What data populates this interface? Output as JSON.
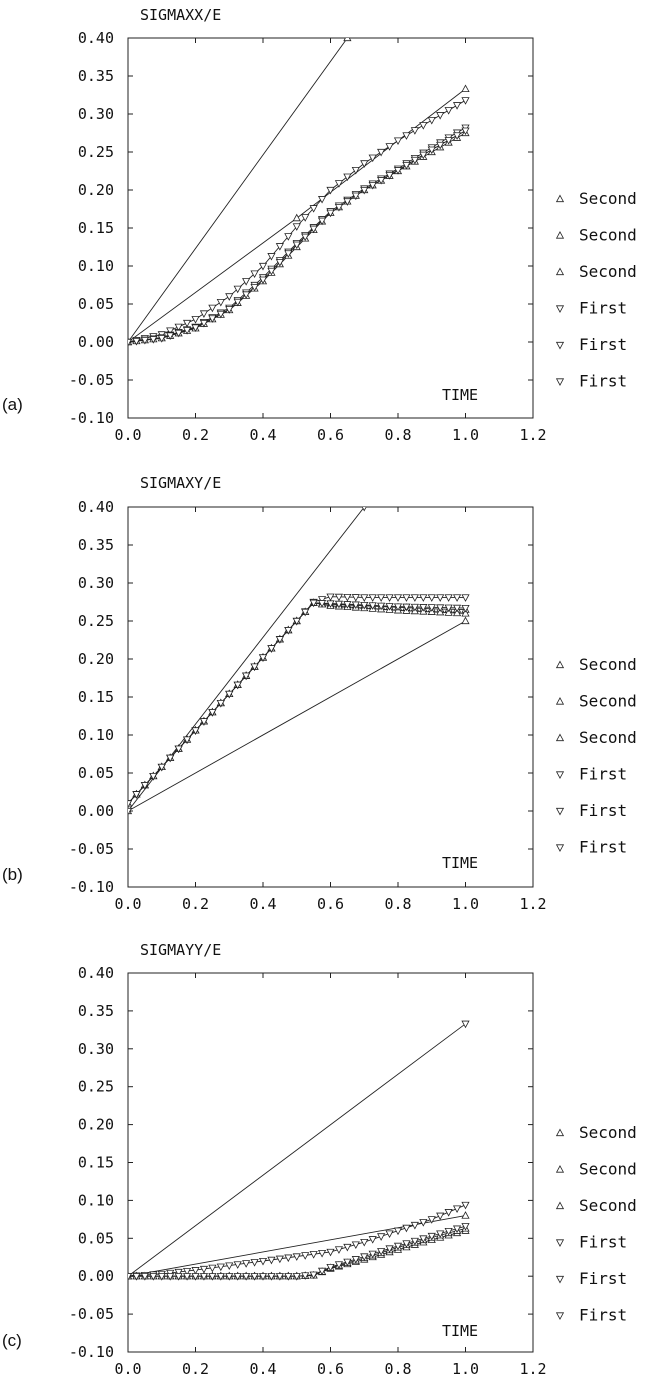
{
  "chart_data": [
    {
      "type": "line",
      "panel_label": "(a)",
      "title": "SIGMAXX/E",
      "xlabel": "TIME",
      "ylabel": "",
      "xlim": [
        0.0,
        1.2
      ],
      "ylim": [
        -0.1,
        0.4
      ],
      "xticks": [
        "0.0",
        "0.2",
        "0.4",
        "0.6",
        "0.8",
        "1.0",
        "1.2"
      ],
      "yticks": [
        "0.40",
        "0.35",
        "0.30",
        "0.25",
        "0.20",
        "0.15",
        "0.10",
        "0.05",
        "0.00",
        "-0.05",
        "-0.10"
      ],
      "grid": false,
      "legend_position": "right",
      "series": [
        {
          "name": "Second",
          "marker": "triangle-up",
          "x": [
            0.0,
            0.65,
            1.0
          ],
          "y": [
            0.0,
            0.4,
            0.61
          ]
        },
        {
          "name": "Second",
          "marker": "triangle-up",
          "x": [
            0.0,
            0.5,
            1.0
          ],
          "y": [
            0.0,
            0.163,
            0.333
          ]
        },
        {
          "name": "Second",
          "marker": "triangle-up",
          "x": [
            0.0,
            0.1,
            0.2,
            0.3,
            0.4,
            0.5,
            0.6,
            0.7,
            0.8,
            0.9,
            1.0
          ],
          "y": [
            0.0,
            0.005,
            0.018,
            0.042,
            0.08,
            0.125,
            0.17,
            0.2,
            0.225,
            0.25,
            0.275
          ]
        },
        {
          "name": "First",
          "marker": "triangle-down",
          "x": [
            0.0,
            0.1,
            0.2,
            0.3,
            0.4,
            0.5,
            0.6,
            0.7,
            0.8,
            0.9,
            1.0
          ],
          "y": [
            0.0,
            0.01,
            0.03,
            0.06,
            0.1,
            0.152,
            0.2,
            0.235,
            0.265,
            0.292,
            0.318
          ]
        },
        {
          "name": "First",
          "marker": "triangle-down",
          "x": [
            0.0,
            0.1,
            0.2,
            0.3,
            0.4,
            0.5,
            0.6,
            0.7,
            0.8,
            0.9,
            1.0
          ],
          "y": [
            0.0,
            0.006,
            0.02,
            0.045,
            0.085,
            0.13,
            0.172,
            0.202,
            0.228,
            0.256,
            0.282
          ]
        },
        {
          "name": "First",
          "marker": "triangle-down",
          "x": [
            0.0,
            0.1,
            0.2,
            0.3,
            0.4,
            0.5,
            0.6,
            0.7,
            0.8,
            0.9,
            1.0
          ],
          "y": [
            0.0,
            0.005,
            0.019,
            0.043,
            0.082,
            0.128,
            0.17,
            0.2,
            0.226,
            0.253,
            0.278
          ]
        }
      ]
    },
    {
      "type": "line",
      "panel_label": "(b)",
      "title": "SIGMAXY/E",
      "xlabel": "TIME",
      "ylabel": "",
      "xlim": [
        0.0,
        1.2
      ],
      "ylim": [
        -0.1,
        0.4
      ],
      "xticks": [
        "0.0",
        "0.2",
        "0.4",
        "0.6",
        "0.8",
        "1.0",
        "1.2"
      ],
      "yticks": [
        "0.40",
        "0.35",
        "0.30",
        "0.25",
        "0.20",
        "0.15",
        "0.10",
        "0.05",
        "0.00",
        "-0.05",
        "-0.10"
      ],
      "grid": false,
      "legend_position": "right",
      "series": [
        {
          "name": "Second",
          "marker": "triangle-up",
          "x": [
            0.0,
            1.0
          ],
          "y": [
            0.0,
            0.25
          ]
        },
        {
          "name": "Second",
          "marker": "triangle-up",
          "x": [
            0.0,
            0.1,
            0.2,
            0.3,
            0.4,
            0.5,
            0.55,
            0.6,
            0.7,
            0.8,
            0.9,
            1.0
          ],
          "y": [
            0.01,
            0.058,
            0.106,
            0.154,
            0.202,
            0.25,
            0.274,
            0.272,
            0.27,
            0.268,
            0.266,
            0.265
          ]
        },
        {
          "name": "Second",
          "marker": "triangle-up",
          "x": [
            0.0,
            0.1,
            0.2,
            0.3,
            0.4,
            0.5,
            0.55,
            0.6,
            0.7,
            0.8,
            0.9,
            1.0
          ],
          "y": [
            0.01,
            0.058,
            0.106,
            0.154,
            0.202,
            0.25,
            0.274,
            0.27,
            0.267,
            0.264,
            0.262,
            0.26
          ]
        },
        {
          "name": "First",
          "marker": "triangle-down",
          "x": [
            0.0,
            0.7
          ],
          "y": [
            0.0,
            0.4
          ]
        },
        {
          "name": "First",
          "marker": "triangle-down",
          "x": [
            0.0,
            0.1,
            0.2,
            0.3,
            0.4,
            0.5,
            0.55,
            0.6,
            0.7,
            0.8,
            0.9,
            1.0
          ],
          "y": [
            0.01,
            0.058,
            0.106,
            0.154,
            0.202,
            0.25,
            0.275,
            0.282,
            0.281,
            0.281,
            0.281,
            0.281
          ]
        },
        {
          "name": "First",
          "marker": "triangle-down",
          "x": [
            0.0,
            0.1,
            0.2,
            0.3,
            0.4,
            0.5,
            0.55,
            0.6,
            0.7,
            0.8,
            0.9,
            1.0
          ],
          "y": [
            0.01,
            0.058,
            0.106,
            0.154,
            0.202,
            0.25,
            0.274,
            0.273,
            0.271,
            0.269,
            0.268,
            0.267
          ]
        }
      ]
    },
    {
      "type": "line",
      "panel_label": "(c)",
      "title": "SIGMAYY/E",
      "xlabel": "TIME",
      "ylabel": "",
      "xlim": [
        0.0,
        1.2
      ],
      "ylim": [
        -0.1,
        0.4
      ],
      "xticks": [
        "0.0",
        "0.2",
        "0.4",
        "0.6",
        "0.8",
        "1.0",
        "1.2"
      ],
      "yticks": [
        "0.40",
        "0.35",
        "0.30",
        "0.25",
        "0.20",
        "0.15",
        "0.10",
        "0.05",
        "0.00",
        "-0.05",
        "-0.10"
      ],
      "grid": false,
      "legend_position": "right",
      "series": [
        {
          "name": "Second",
          "marker": "triangle-up",
          "x": [
            0.0,
            1.0
          ],
          "y": [
            0.0,
            0.08
          ]
        },
        {
          "name": "Second",
          "marker": "triangle-up",
          "x": [
            0.0,
            0.1,
            0.2,
            0.3,
            0.4,
            0.5,
            0.55,
            0.6,
            0.7,
            0.8,
            0.9,
            1.0
          ],
          "y": [
            0.0,
            0.0,
            0.0,
            0.0,
            0.0,
            0.0,
            0.001,
            0.01,
            0.022,
            0.035,
            0.048,
            0.06
          ]
        },
        {
          "name": "Second",
          "marker": "triangle-up",
          "x": [
            0.0,
            0.1,
            0.2,
            0.3,
            0.4,
            0.5,
            0.55,
            0.6,
            0.7,
            0.8,
            0.9,
            1.0
          ],
          "y": [
            0.0,
            0.0,
            0.0,
            0.0,
            0.0,
            0.0,
            0.001,
            0.011,
            0.024,
            0.038,
            0.051,
            0.063
          ]
        },
        {
          "name": "First",
          "marker": "triangle-down",
          "x": [
            0.0,
            1.0
          ],
          "y": [
            0.0,
            0.333
          ]
        },
        {
          "name": "First",
          "marker": "triangle-down",
          "x": [
            0.0,
            0.1,
            0.2,
            0.3,
            0.4,
            0.5,
            0.6,
            0.7,
            0.8,
            0.9,
            1.0
          ],
          "y": [
            0.0,
            0.003,
            0.008,
            0.014,
            0.02,
            0.026,
            0.032,
            0.045,
            0.06,
            0.075,
            0.094
          ]
        },
        {
          "name": "First",
          "marker": "triangle-down",
          "x": [
            0.0,
            0.1,
            0.2,
            0.3,
            0.4,
            0.5,
            0.55,
            0.6,
            0.7,
            0.8,
            0.9,
            1.0
          ],
          "y": [
            0.0,
            0.0,
            0.0,
            0.0,
            0.0,
            0.0,
            0.002,
            0.012,
            0.026,
            0.04,
            0.053,
            0.066
          ]
        }
      ]
    }
  ]
}
